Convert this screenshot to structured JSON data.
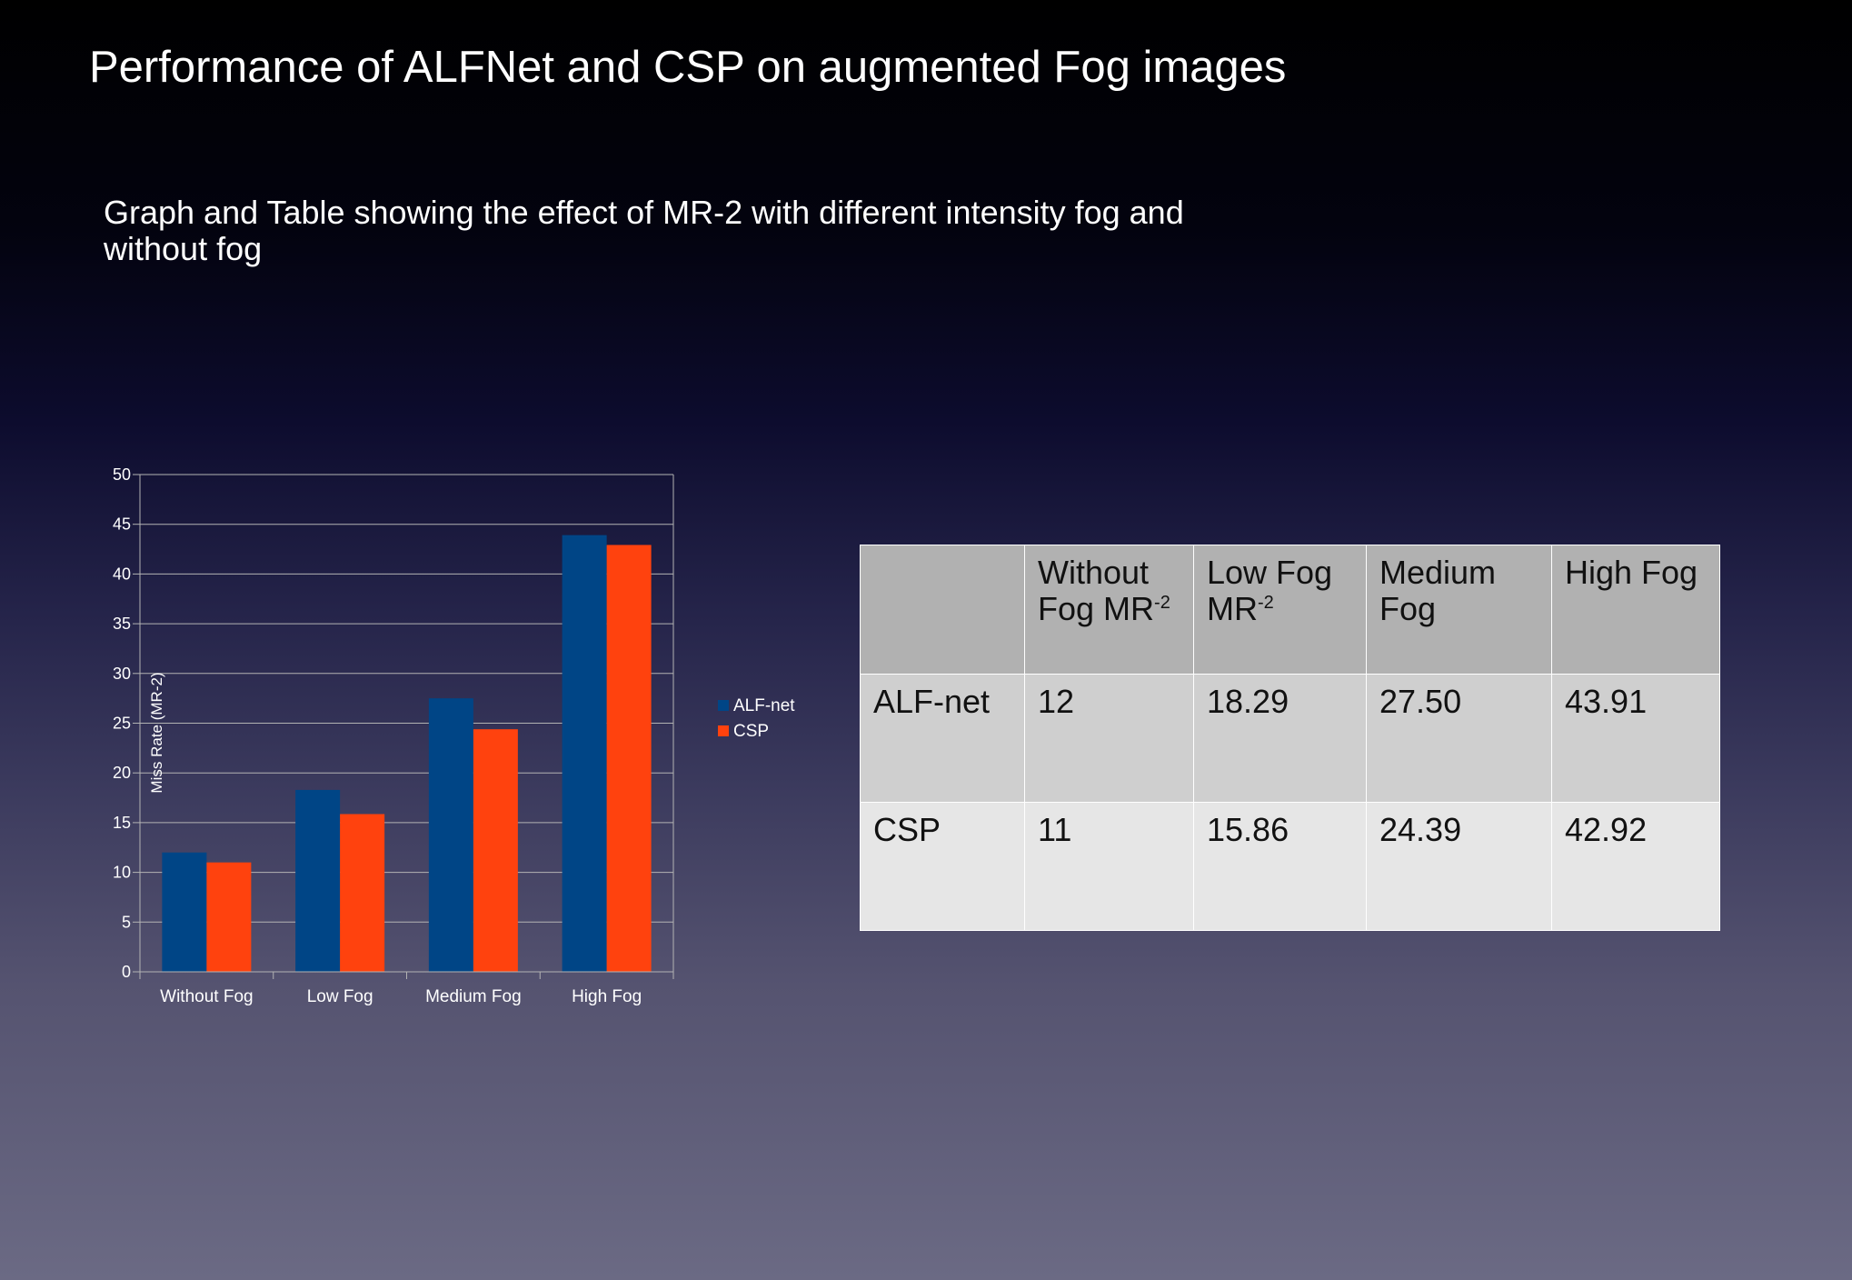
{
  "slide": {
    "title": "Performance of ALFNet and CSP on augmented Fog images",
    "subtitle": "Graph and Table showing  the effect of  MR-2 with different intensity fog and without fog"
  },
  "chart_data": {
    "type": "bar",
    "title": "",
    "xlabel": "",
    "ylabel": "Miss Rate (MR-2)",
    "ylim": [
      0,
      50
    ],
    "yticks": [
      0,
      5,
      10,
      15,
      20,
      25,
      30,
      35,
      40,
      45,
      50
    ],
    "categories": [
      "Without Fog",
      "Low  Fog",
      "Medium Fog",
      "High Fog"
    ],
    "series": [
      {
        "name": "ALF-net",
        "color": "#004586",
        "values": [
          12,
          18.29,
          27.5,
          43.91
        ]
      },
      {
        "name": "CSP",
        "color": "#ff420e",
        "values": [
          11,
          15.86,
          24.39,
          42.92
        ]
      }
    ],
    "grid": true,
    "legend_position": "right",
    "axis_color": "#b3b3b3",
    "grid_color": "#b3b3b3"
  },
  "table": {
    "headers": [
      {
        "text": "",
        "sup": ""
      },
      {
        "text": "Without Fog MR",
        "sup": "-2"
      },
      {
        "text": "Low Fog MR",
        "sup": "-2"
      },
      {
        "text": "Medium Fog",
        "sup": ""
      },
      {
        "text": "High Fog",
        "sup": ""
      }
    ],
    "rows": [
      {
        "label": "ALF-net",
        "cells": [
          "12",
          "18.29",
          "27.50",
          "43.91"
        ]
      },
      {
        "label": "CSP",
        "cells": [
          "11",
          "15.86",
          "24.39",
          "42.92"
        ]
      }
    ],
    "colors": {
      "header_bg": "#b1b1b1",
      "row1_bg": "#cfcfcf",
      "row2_bg": "#e6e6e6"
    }
  }
}
